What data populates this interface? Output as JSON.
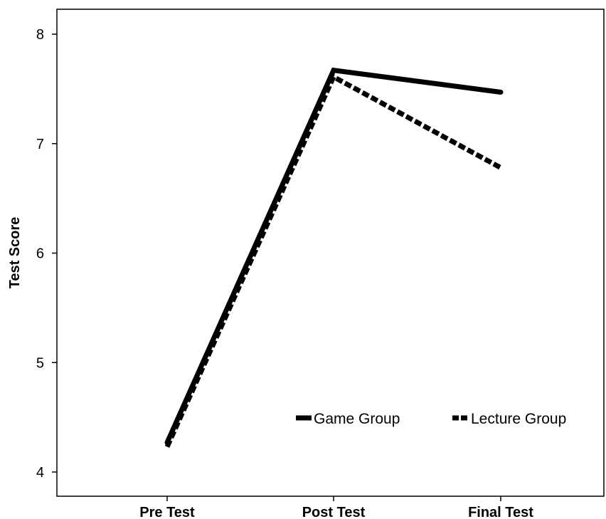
{
  "chart_data": {
    "type": "line",
    "title": "",
    "xlabel": "",
    "ylabel": "Test Score",
    "categories": [
      "Pre Test",
      "Post Test",
      "Final Test"
    ],
    "ylim": [
      3.9,
      8.25
    ],
    "yticks": [
      4,
      5,
      6,
      7,
      8
    ],
    "grid": false,
    "legend_position": "bottom-right inside",
    "series": [
      {
        "name": "Game Group",
        "values": [
          4.27,
          7.67,
          7.47
        ],
        "style": "solid",
        "color": "#000000"
      },
      {
        "name": "Lecture Group",
        "values": [
          4.23,
          7.61,
          6.78
        ],
        "style": "dashed",
        "color": "#000000"
      }
    ]
  }
}
